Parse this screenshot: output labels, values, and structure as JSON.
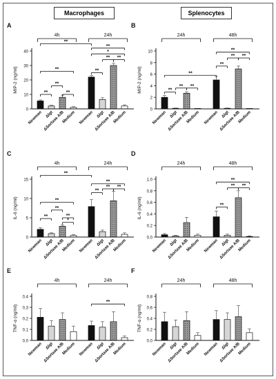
{
  "columns": [
    "Macrophages",
    "Splenocytes"
  ],
  "chart_data": [
    {
      "panel": "A",
      "type": "bar",
      "ylabel": "MIP-2 (ng/ml)",
      "ylim": [
        0,
        40
      ],
      "yticks": [
        0,
        10,
        20,
        30,
        40
      ],
      "groups": [
        "4h",
        "24h"
      ],
      "categories": [
        "Newman",
        "Δlgt",
        "ΔSortase A/B",
        "Medium"
      ],
      "series": [
        {
          "group": "4h",
          "values": [
            5.5,
            2.0,
            8.0,
            1.0
          ],
          "errors": [
            0.7,
            0.5,
            1.5,
            0.5
          ]
        },
        {
          "group": "24h",
          "values": [
            22.0,
            6.5,
            30.0,
            2.0
          ],
          "errors": [
            1.0,
            1.2,
            1.5,
            0.8
          ]
        }
      ],
      "annotations": [
        {
          "label": "**",
          "group": 0,
          "from": 0,
          "to": 1,
          "y": 10
        },
        {
          "label": "**",
          "group": 0,
          "from": 1,
          "to": 2,
          "y": 16
        },
        {
          "label": "**",
          "group": 0,
          "from": 2,
          "to": 3,
          "y": 10
        },
        {
          "label": "**",
          "group": 0,
          "from": 0,
          "to": 3,
          "y": 26
        },
        {
          "label": "**",
          "group": 1,
          "from": 0,
          "to": 1,
          "y": 25
        },
        {
          "label": "**",
          "group": 1,
          "from": 1,
          "to": 2,
          "y": 34
        },
        {
          "label": "**",
          "group": 1,
          "from": 2,
          "to": 3,
          "y": 34
        },
        {
          "label": "*",
          "group": 1,
          "from": 0,
          "to": 3,
          "y": 38
        },
        {
          "label": "**",
          "group": 1,
          "from": 0,
          "to": 3,
          "y": 42
        }
      ],
      "span": {
        "label": "**",
        "y": 45
      }
    },
    {
      "panel": "B",
      "type": "bar",
      "ylabel": "MIP-2 (ng/ml)",
      "ylim": [
        0,
        10
      ],
      "yticks": [
        0,
        2,
        4,
        6,
        8,
        10
      ],
      "groups": [
        "24h",
        "48h"
      ],
      "categories": [
        "Newman",
        "Δlgt",
        "ΔSortase A/B",
        "Medium"
      ],
      "series": [
        {
          "group": "24h",
          "values": [
            2.0,
            0.1,
            2.7,
            0.0
          ],
          "errors": [
            0.3,
            0.05,
            0.25,
            0.0
          ]
        },
        {
          "group": "48h",
          "values": [
            5.0,
            0.1,
            6.9,
            0.0
          ],
          "errors": [
            0.6,
            0.05,
            0.5,
            0.0
          ]
        }
      ],
      "annotations": [
        {
          "label": "**",
          "group": 0,
          "from": 0,
          "to": 1,
          "y": 2.9
        },
        {
          "label": "**",
          "group": 0,
          "from": 1,
          "to": 2,
          "y": 3.6
        },
        {
          "label": "**",
          "group": 0,
          "from": 2,
          "to": 3,
          "y": 3.6
        },
        {
          "label": "**",
          "group": 1,
          "from": 0,
          "to": 1,
          "y": 7.4
        },
        {
          "label": "**",
          "group": 1,
          "from": 1,
          "to": 2,
          "y": 8.8
        },
        {
          "label": "**",
          "group": 1,
          "from": 2,
          "to": 3,
          "y": 8.8
        },
        {
          "label": "**",
          "group": 1,
          "from": 0,
          "to": 3,
          "y": 9.8
        }
      ],
      "span": {
        "label": "**",
        "y": 5.8
      }
    },
    {
      "panel": "C",
      "type": "bar",
      "ylabel": "IL-6 (ng/ml)",
      "ylim": [
        0,
        15
      ],
      "yticks": [
        0,
        5,
        10,
        15
      ],
      "groups": [
        "4h",
        "24h"
      ],
      "categories": [
        "Newman",
        "Δlgt",
        "ΔSortase A/B",
        "Medium"
      ],
      "series": [
        {
          "group": "4h",
          "values": [
            2.0,
            0.9,
            2.8,
            0.4
          ],
          "errors": [
            0.4,
            0.2,
            0.3,
            0.2
          ]
        },
        {
          "group": "24h",
          "values": [
            7.9,
            1.4,
            9.4,
            0.7
          ],
          "errors": [
            1.8,
            0.4,
            2.5,
            0.4
          ]
        }
      ],
      "annotations": [
        {
          "label": "*",
          "group": 0,
          "from": 2,
          "to": 3,
          "y": 3.8
        },
        {
          "label": "**",
          "group": 0,
          "from": 0,
          "to": 1,
          "y": 4.8
        },
        {
          "label": "**",
          "group": 0,
          "from": 2,
          "to": 3,
          "y": 5.0
        },
        {
          "label": "**",
          "group": 0,
          "from": 1,
          "to": 2,
          "y": 7.0
        },
        {
          "label": "**",
          "group": 0,
          "from": 0,
          "to": 3,
          "y": 9.0
        },
        {
          "label": "**",
          "group": 1,
          "from": 0,
          "to": 1,
          "y": 11.5
        },
        {
          "label": "**",
          "group": 1,
          "from": 1,
          "to": 2,
          "y": 12.5
        },
        {
          "label": "**",
          "group": 1,
          "from": 2,
          "to": 3,
          "y": 12.5
        },
        {
          "label": "**",
          "group": 1,
          "from": 0,
          "to": 3,
          "y": 13.8
        }
      ],
      "span": {
        "label": "**",
        "y": 16.0
      }
    },
    {
      "panel": "D",
      "type": "bar",
      "ylabel": "IL-6 (ng/ml)",
      "ylim": [
        0,
        1.0
      ],
      "yticks": [
        0.0,
        0.2,
        0.4,
        0.6,
        0.8,
        1.0
      ],
      "groups": [
        "24h",
        "48h"
      ],
      "categories": [
        "Newman",
        "Δlgt",
        "ΔSortase A/B",
        "Medium"
      ],
      "series": [
        {
          "group": "24h",
          "values": [
            0.04,
            0.02,
            0.25,
            0.03
          ],
          "errors": [
            0.02,
            0.01,
            0.09,
            0.02
          ]
        },
        {
          "group": "48h",
          "values": [
            0.35,
            0.03,
            0.68,
            0.01
          ],
          "errors": [
            0.1,
            0.02,
            0.12,
            0.01
          ]
        }
      ],
      "annotations": [
        {
          "label": "**",
          "group": 1,
          "from": 0,
          "to": 1,
          "y": 0.52
        },
        {
          "label": "**",
          "group": 1,
          "from": 1,
          "to": 2,
          "y": 0.85
        },
        {
          "label": "**",
          "group": 1,
          "from": 2,
          "to": 3,
          "y": 0.85
        },
        {
          "label": "**",
          "group": 1,
          "from": 0,
          "to": 3,
          "y": 0.95
        }
      ],
      "span": null
    },
    {
      "panel": "E",
      "type": "bar",
      "ylabel": "TNF-α (ng/ml)",
      "ylim": [
        0,
        0.4
      ],
      "yticks": [
        0.0,
        0.1,
        0.2,
        0.3,
        0.4
      ],
      "groups": [
        "4h",
        "24h"
      ],
      "categories": [
        "Newman",
        "Δlgt",
        "ΔSortase A/B",
        "Medium"
      ],
      "series": [
        {
          "group": "4h",
          "values": [
            0.21,
            0.13,
            0.19,
            0.08
          ],
          "errors": [
            0.08,
            0.05,
            0.06,
            0.05
          ]
        },
        {
          "group": "24h",
          "values": [
            0.135,
            0.12,
            0.17,
            0.025
          ],
          "errors": [
            0.04,
            0.05,
            0.09,
            0.015
          ]
        }
      ],
      "annotations": [
        {
          "label": "**",
          "group": 1,
          "from": 0,
          "to": 3,
          "y": 0.33
        }
      ],
      "span": null
    },
    {
      "panel": "F",
      "type": "bar",
      "ylabel": "TNF-α (ng/ml)",
      "ylim": [
        0,
        0.8
      ],
      "yticks": [
        0.0,
        0.2,
        0.4,
        0.6,
        0.8
      ],
      "groups": [
        "24h",
        "48h"
      ],
      "categories": [
        "Newman",
        "Δlgt",
        "ΔSortase A/B",
        "Medium"
      ],
      "series": [
        {
          "group": "24h",
          "values": [
            0.34,
            0.25,
            0.36,
            0.09
          ],
          "errors": [
            0.17,
            0.12,
            0.16,
            0.05
          ]
        },
        {
          "group": "48h",
          "values": [
            0.38,
            0.38,
            0.43,
            0.14
          ],
          "errors": [
            0.16,
            0.12,
            0.2,
            0.07
          ]
        }
      ],
      "annotations": [],
      "span": null
    }
  ]
}
